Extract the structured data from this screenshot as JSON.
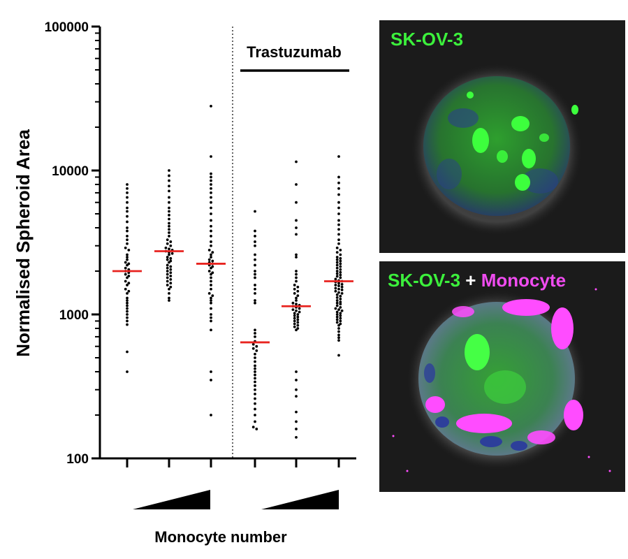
{
  "chart_data": {
    "type": "scatter",
    "title": "",
    "ylabel": "Normalised Spheroid Area",
    "xlabel": "Monocyte number",
    "yscale": "log",
    "ylim": [
      100,
      100000
    ],
    "yticks": [
      100,
      1000,
      10000,
      100000
    ],
    "ytick_labels": [
      "100",
      "1000",
      "10000",
      "100000"
    ],
    "treatment_label": "Trastuzumab",
    "point_color": "#000000",
    "median_color": "#e8231f",
    "groups": [
      {
        "treatment": "none",
        "monocyte_level": 1,
        "median": 2000,
        "values": [
          8000,
          7500,
          7000,
          6500,
          6000,
          5500,
          5200,
          4800,
          4400,
          4000,
          3800,
          3500,
          3300,
          3100,
          2900,
          2800,
          2600,
          2500,
          2400,
          2300,
          2250,
          2200,
          2100,
          2050,
          2000,
          1950,
          1900,
          1850,
          1800,
          1700,
          1650,
          1600,
          1500,
          1450,
          1400,
          1300,
          1250,
          1200,
          1150,
          1100,
          1050,
          1000,
          950,
          900,
          850,
          550,
          400
        ]
      },
      {
        "treatment": "none",
        "monocyte_level": 2,
        "median": 2750,
        "values": [
          10000,
          9200,
          8500,
          7800,
          7200,
          6500,
          6000,
          5500,
          5200,
          4900,
          4600,
          4300,
          4100,
          3900,
          3700,
          3500,
          3300,
          3200,
          3100,
          3000,
          2900,
          2850,
          2800,
          2750,
          2700,
          2650,
          2600,
          2500,
          2450,
          2400,
          2350,
          2300,
          2200,
          2150,
          2100,
          2050,
          2000,
          1950,
          1900,
          1850,
          1800,
          1750,
          1700,
          1650,
          1600,
          1550,
          1500,
          1400,
          1300,
          1250
        ]
      },
      {
        "treatment": "none",
        "monocyte_level": 3,
        "median": 2250,
        "values": [
          28000,
          12500,
          9500,
          9000,
          8500,
          8000,
          7500,
          7000,
          6500,
          6000,
          5500,
          5000,
          4500,
          4100,
          3800,
          3500,
          3200,
          3000,
          2800,
          2700,
          2600,
          2500,
          2400,
          2350,
          2300,
          2250,
          2200,
          2150,
          2100,
          2000,
          1950,
          1900,
          1800,
          1700,
          1600,
          1500,
          1400,
          1350,
          1300,
          1250,
          1200,
          1100,
          1000,
          950,
          900,
          780,
          400,
          350,
          200
        ]
      },
      {
        "treatment": "Trastuzumab",
        "monocyte_level": 1,
        "median": 640,
        "values": [
          5200,
          3800,
          3500,
          3200,
          3000,
          2600,
          2400,
          2200,
          2000,
          1900,
          1800,
          1600,
          1500,
          1400,
          1250,
          1200,
          780,
          740,
          700,
          650,
          620,
          600,
          580,
          560,
          530,
          500,
          470,
          440,
          420,
          400,
          380,
          360,
          340,
          320,
          300,
          280,
          260,
          240,
          220,
          200,
          180,
          165,
          160
        ]
      },
      {
        "treatment": "Trastuzumab",
        "monocyte_level": 2,
        "median": 1140,
        "values": [
          11500,
          8000,
          6000,
          4500,
          4000,
          3600,
          2600,
          2500,
          2000,
          1900,
          1800,
          1700,
          1600,
          1550,
          1500,
          1450,
          1400,
          1350,
          1300,
          1250,
          1200,
          1180,
          1160,
          1140,
          1120,
          1100,
          1080,
          1060,
          1040,
          1020,
          1000,
          980,
          960,
          940,
          920,
          900,
          880,
          860,
          840,
          820,
          800,
          780,
          400,
          350,
          300,
          270,
          210,
          180,
          160,
          140
        ]
      },
      {
        "treatment": "Trastuzumab",
        "monocyte_level": 3,
        "median": 1700,
        "values": [
          12500,
          9000,
          8200,
          7500,
          6800,
          6000,
          5500,
          5000,
          4500,
          4200,
          3900,
          3600,
          3300,
          3100,
          2900,
          2800,
          2700,
          2600,
          2500,
          2450,
          2400,
          2350,
          2300,
          2250,
          2200,
          2150,
          2100,
          2050,
          2000,
          1960,
          1920,
          1880,
          1840,
          1800,
          1760,
          1720,
          1700,
          1680,
          1650,
          1620,
          1600,
          1580,
          1550,
          1520,
          1500,
          1480,
          1450,
          1420,
          1400,
          1370,
          1340,
          1310,
          1280,
          1250,
          1220,
          1200,
          1180,
          1150,
          1120,
          1100,
          1080,
          1060,
          1040,
          1020,
          1000,
          980,
          960,
          940,
          920,
          900,
          880,
          860,
          840,
          800,
          760,
          720,
          690,
          660,
          520
        ]
      }
    ],
    "x_tick_count": 6
  },
  "panels": {
    "top": {
      "label": "SK-OV-3",
      "label_color": "#3cf03c"
    },
    "bottom": {
      "label_part1": "SK-OV-3",
      "label_part1_color": "#3cf03c",
      "label_plus": "+",
      "label_plus_color": "#ffffff",
      "label_part2": "Monocyte",
      "label_part2_color": "#f04cf0"
    }
  }
}
